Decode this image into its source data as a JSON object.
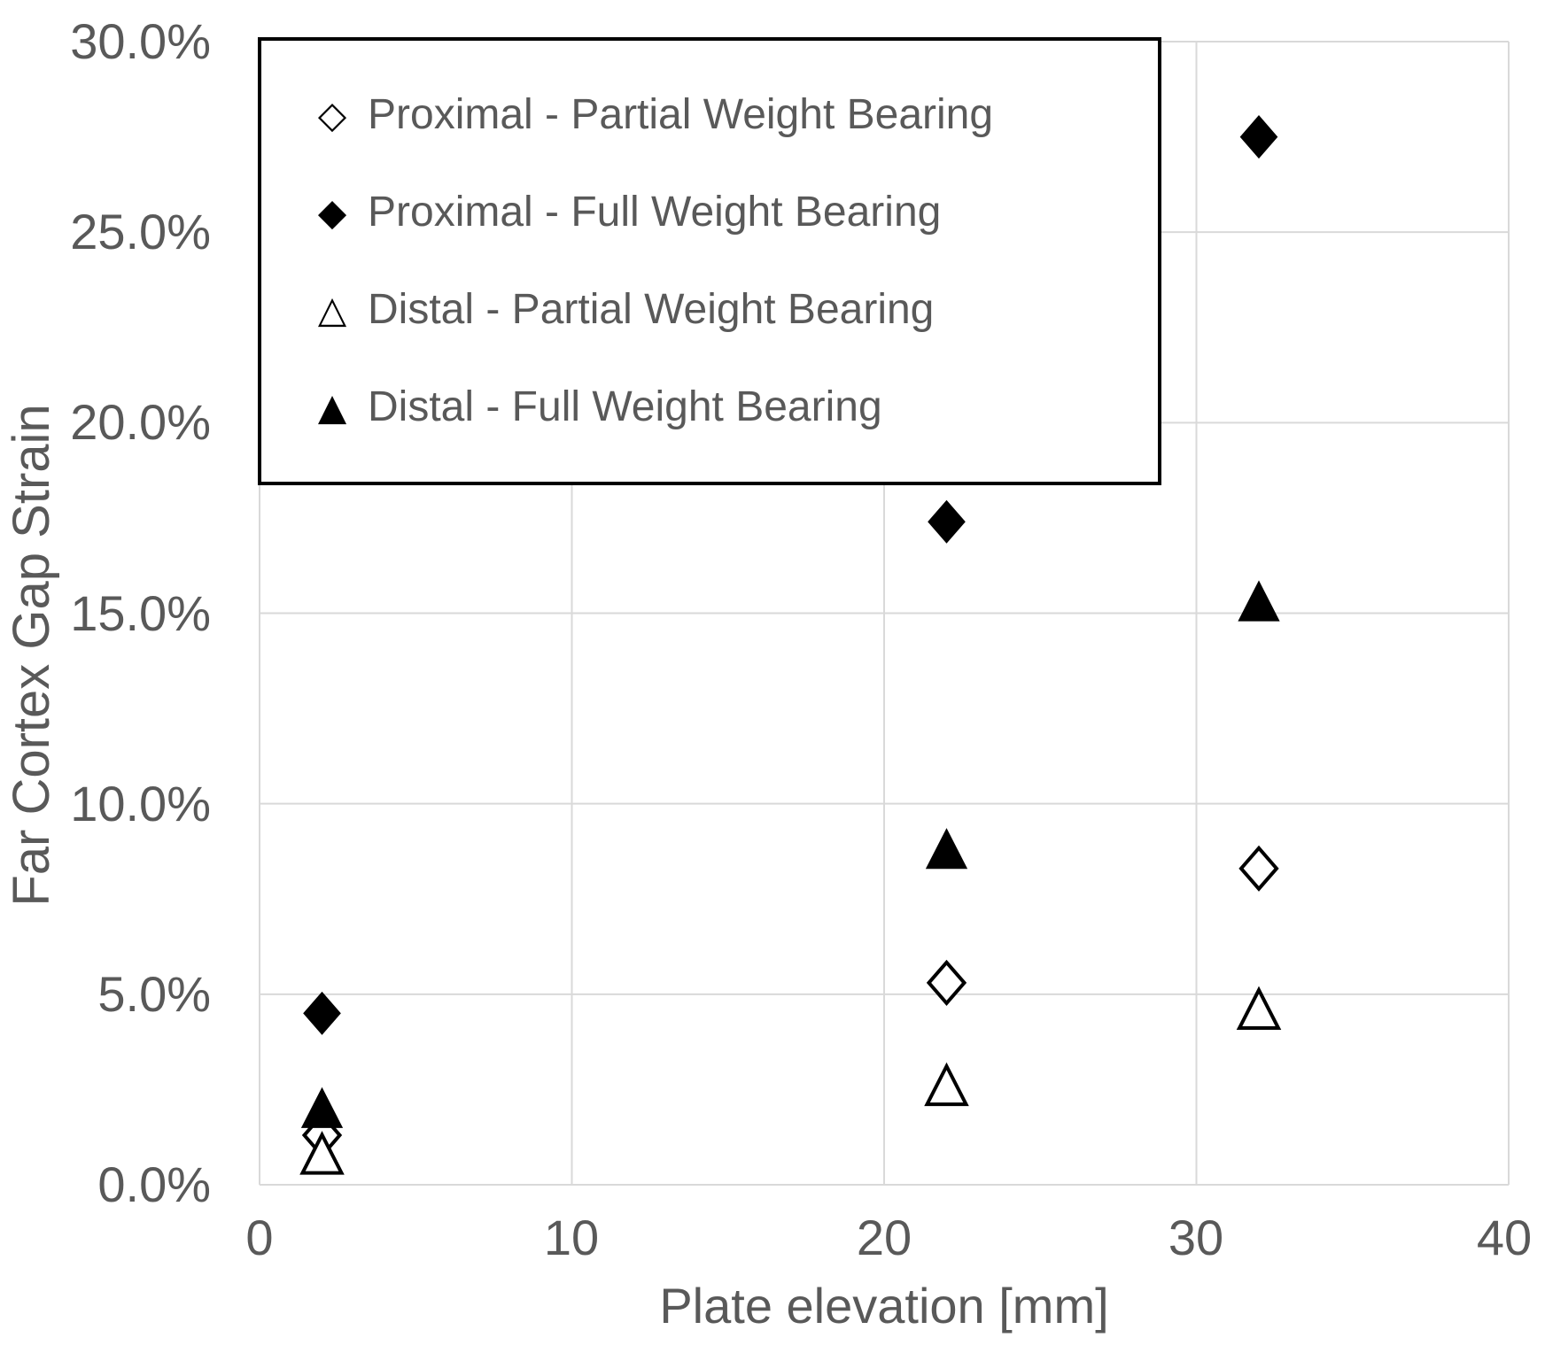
{
  "colors": {
    "background": "#ffffff",
    "marker": "#000000",
    "axis_text": "#595959",
    "grid": "#d9d9d9",
    "legend_border": "#000000"
  },
  "chart_data": {
    "type": "scatter",
    "title": "",
    "xlabel": "Plate elevation [mm]",
    "ylabel": "Far Cortex Gap Strain",
    "xlim": [
      0,
      40
    ],
    "ylim_percent": [
      0,
      30
    ],
    "grid": true,
    "legend_position": "top-left-inside",
    "x_ticks": [
      0,
      10,
      20,
      30,
      40
    ],
    "x_tick_labels": [
      "0",
      "10",
      "20",
      "30",
      "40"
    ],
    "y_ticks_percent": [
      0,
      5,
      10,
      15,
      20,
      25,
      30
    ],
    "y_tick_labels": [
      "30.0%",
      "25.0%",
      "20.0%",
      "15.0%",
      "10.0%",
      "5.0%",
      "0.0%"
    ],
    "series": [
      {
        "name": "Proximal - Partial Weight Bearing",
        "marker": "diamond-open",
        "marker_glyph": "◇",
        "x": [
          2,
          22,
          32
        ],
        "y_percent": [
          1.3,
          5.3,
          8.3
        ]
      },
      {
        "name": "Proximal - Full Weight Bearing",
        "marker": "diamond-filled",
        "marker_glyph": "◆",
        "x": [
          2,
          22,
          32
        ],
        "y_percent": [
          4.5,
          17.4,
          27.5
        ]
      },
      {
        "name": "Distal - Partial Weight Bearing",
        "marker": "triangle-open",
        "marker_glyph": "△",
        "x": [
          2,
          22,
          32
        ],
        "y_percent": [
          0.8,
          2.6,
          4.6
        ]
      },
      {
        "name": "Distal - Full Weight Bearing",
        "marker": "triangle-filled",
        "marker_glyph": "▲",
        "x": [
          2,
          22,
          32
        ],
        "y_percent": [
          2.0,
          8.8,
          15.3
        ]
      }
    ]
  }
}
